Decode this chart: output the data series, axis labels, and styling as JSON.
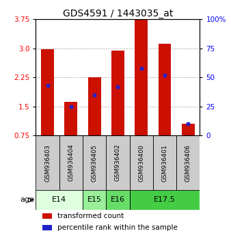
{
  "title": "GDS4591 / 1443035_at",
  "samples": [
    "GSM936403",
    "GSM936404",
    "GSM936405",
    "GSM936402",
    "GSM936400",
    "GSM936401",
    "GSM936406"
  ],
  "transformed_counts": [
    2.97,
    1.62,
    2.25,
    2.95,
    3.75,
    3.12,
    1.05
  ],
  "percentile_ranks": [
    43,
    25,
    35,
    42,
    58,
    52,
    10
  ],
  "age_groups": [
    {
      "label": "E14",
      "spans": [
        0,
        1
      ],
      "color": "#ddffdd"
    },
    {
      "label": "E15",
      "spans": [
        2
      ],
      "color": "#99ee99"
    },
    {
      "label": "E16",
      "spans": [
        3
      ],
      "color": "#77dd77"
    },
    {
      "label": "E17.5",
      "spans": [
        4,
        5,
        6
      ],
      "color": "#44cc44"
    }
  ],
  "ylim_left": [
    0.75,
    3.75
  ],
  "yticks_left": [
    0.75,
    1.5,
    2.25,
    3.0,
    3.75
  ],
  "ylim_right": [
    0,
    100
  ],
  "yticks_right": [
    0,
    25,
    50,
    75,
    100
  ],
  "bar_color": "#cc1100",
  "marker_color": "#2222cc",
  "bar_width": 0.55,
  "grid_color": "#888888",
  "bg_color": "#ffffff",
  "sample_bg": "#cccccc",
  "legend_red_label": "transformed count",
  "legend_blue_label": "percentile rank within the sample",
  "age_label": "age",
  "title_fontsize": 10,
  "tick_fontsize": 7.5,
  "legend_fontsize": 7.5,
  "age_fontsize": 8,
  "sample_fontsize": 6.5
}
